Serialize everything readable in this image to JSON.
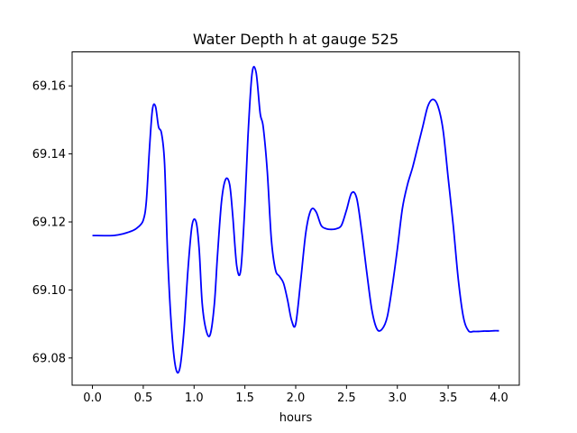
{
  "chart_data": {
    "type": "line",
    "title": "Water Depth h at gauge 525",
    "xlabel": "hours",
    "ylabel": "",
    "xlim": [
      -0.2,
      4.2
    ],
    "ylim": [
      69.072,
      69.17
    ],
    "xticks": [
      0.0,
      0.5,
      1.0,
      1.5,
      2.0,
      2.5,
      3.0,
      3.5,
      4.0
    ],
    "xtick_labels": [
      "0.0",
      "0.5",
      "1.0",
      "1.5",
      "2.0",
      "2.5",
      "3.0",
      "3.5",
      "4.0"
    ],
    "yticks": [
      69.08,
      69.1,
      69.12,
      69.14,
      69.16
    ],
    "ytick_labels": [
      "69.08",
      "69.10",
      "69.12",
      "69.14",
      "69.16"
    ],
    "grid": false,
    "series": [
      {
        "color": "#0000ff",
        "x": [
          0.0,
          0.2,
          0.3,
          0.4,
          0.45,
          0.5,
          0.53,
          0.56,
          0.59,
          0.62,
          0.65,
          0.68,
          0.71,
          0.74,
          0.78,
          0.82,
          0.86,
          0.9,
          0.94,
          0.98,
          1.02,
          1.05,
          1.08,
          1.12,
          1.16,
          1.2,
          1.23,
          1.27,
          1.31,
          1.35,
          1.38,
          1.42,
          1.46,
          1.5,
          1.53,
          1.57,
          1.61,
          1.65,
          1.68,
          1.72,
          1.76,
          1.8,
          1.84,
          1.88,
          1.92,
          1.96,
          2.0,
          2.05,
          2.1,
          2.15,
          2.2,
          2.25,
          2.3,
          2.35,
          2.4,
          2.45,
          2.5,
          2.55,
          2.6,
          2.65,
          2.7,
          2.75,
          2.8,
          2.85,
          2.9,
          2.95,
          3.0,
          3.05,
          3.1,
          3.15,
          3.2,
          3.25,
          3.3,
          3.35,
          3.4,
          3.45,
          3.5,
          3.55,
          3.6,
          3.65,
          3.7,
          3.75,
          3.8,
          3.85,
          3.9,
          3.95,
          4.0
        ],
        "y": [
          69.116,
          69.116,
          69.1165,
          69.1175,
          69.1185,
          69.1205,
          69.126,
          69.141,
          69.153,
          69.154,
          69.148,
          69.146,
          69.137,
          69.11,
          69.088,
          69.077,
          69.077,
          69.088,
          69.106,
          69.119,
          69.12,
          69.112,
          69.096,
          69.088,
          69.087,
          69.096,
          69.11,
          69.126,
          69.1325,
          69.131,
          69.122,
          69.107,
          69.106,
          69.125,
          69.145,
          69.1635,
          69.164,
          69.152,
          69.148,
          69.135,
          69.115,
          69.106,
          69.104,
          69.102,
          69.097,
          69.091,
          69.09,
          69.103,
          69.117,
          69.1235,
          69.123,
          69.119,
          69.118,
          69.1178,
          69.118,
          69.119,
          69.1235,
          69.1285,
          69.127,
          69.117,
          69.105,
          69.094,
          69.0885,
          69.0885,
          69.092,
          69.101,
          69.112,
          69.124,
          69.131,
          69.136,
          69.142,
          69.148,
          69.154,
          69.156,
          69.154,
          69.147,
          69.133,
          69.119,
          69.103,
          69.092,
          69.088,
          69.0878,
          69.0878,
          69.0879,
          69.0879,
          69.088,
          69.088
        ]
      }
    ]
  }
}
